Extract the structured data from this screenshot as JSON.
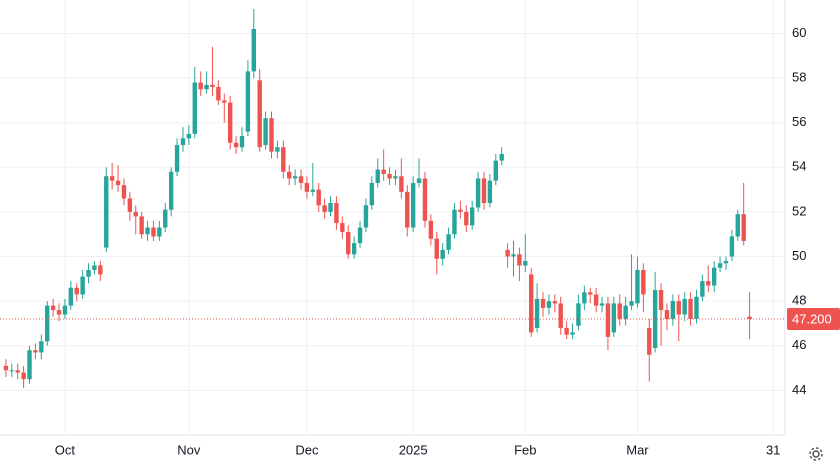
{
  "chart_data": {
    "type": "candlestick",
    "up_color": "#26a69a",
    "down_color": "#ef5350",
    "grid": true,
    "xlim": [
      -1,
      132
    ],
    "ylim": [
      42,
      61.5
    ],
    "xticks": [
      {
        "value": 10,
        "label": "Oct"
      },
      {
        "value": 31,
        "label": "Nov"
      },
      {
        "value": 51,
        "label": "Dec"
      },
      {
        "value": 69,
        "label": "2025"
      },
      {
        "value": 88,
        "label": "Feb"
      },
      {
        "value": 107,
        "label": "Mar"
      },
      {
        "value": 130,
        "label": "31"
      }
    ],
    "yticks": [
      44,
      46,
      48,
      50,
      52,
      54,
      56,
      58,
      60
    ],
    "last_price": {
      "value": 47.2,
      "label": "47.200"
    },
    "open": [
      45.1,
      44.9,
      44.9,
      44.8,
      44.5,
      45.8,
      45.7,
      46.2,
      47.8,
      47.6,
      47.4,
      47.8,
      48.6,
      48.3,
      49.1,
      49.4,
      49.6,
      50.4,
      53.6,
      53.4,
      53.2,
      52.6,
      52.0,
      51.8,
      51.0,
      51.3,
      50.9,
      51.3,
      52.1,
      53.8,
      55.0,
      55.3,
      55.5,
      57.8,
      57.5,
      57.7,
      57.6,
      57.0,
      56.9,
      55.1,
      54.9,
      55.6,
      58.3,
      57.9,
      55.0,
      56.2,
      54.7,
      54.9,
      53.8,
      53.5,
      53.6,
      53.3,
      52.9,
      53.0,
      52.3,
      52.0,
      52.4,
      51.5,
      51.1,
      50.1,
      50.6,
      51.3,
      52.3,
      53.3,
      53.9,
      53.7,
      53.5,
      53.6,
      52.9,
      51.3,
      53.3,
      53.5,
      51.6,
      50.8,
      49.9,
      50.3,
      51.0,
      52.1,
      52.0,
      51.4,
      52.2,
      53.5,
      52.4,
      53.4,
      54.3,
      50.3,
      50.0,
      50.1,
      49.6,
      49.2,
      46.8,
      48.1,
      47.7,
      48.0,
      47.9,
      46.8,
      46.5,
      46.9,
      47.9,
      48.4,
      48.3,
      47.8,
      47.9,
      46.6,
      47.9,
      47.2,
      47.8,
      47.9,
      49.4,
      46.8,
      45.9,
      48.5,
      47.6,
      47.2,
      48.0,
      47.4,
      48.1,
      47.2,
      48.2,
      48.9,
      48.7,
      49.5,
      49.7,
      50.0,
      50.9,
      51.9,
      47.3
    ],
    "high": [
      45.4,
      45.2,
      45.2,
      45.1,
      46.0,
      46.1,
      46.5,
      48.0,
      48.1,
      47.9,
      48.1,
      48.9,
      48.8,
      49.4,
      49.7,
      49.8,
      49.8,
      54.0,
      54.2,
      54.1,
      53.5,
      52.9,
      52.3,
      52.0,
      51.6,
      51.6,
      51.6,
      52.4,
      54.0,
      55.3,
      55.8,
      55.9,
      58.5,
      58.3,
      58.3,
      59.4,
      57.9,
      57.3,
      57.2,
      55.4,
      55.8,
      58.8,
      61.1,
      58.4,
      56.5,
      56.5,
      55.2,
      55.2,
      54.1,
      53.9,
      53.9,
      53.6,
      54.2,
      53.3,
      52.6,
      52.7,
      52.7,
      51.8,
      51.4,
      50.9,
      51.6,
      52.6,
      53.6,
      54.4,
      54.8,
      54.0,
      53.9,
      54.4,
      53.2,
      53.6,
      54.4,
      53.8,
      51.9,
      51.1,
      50.6,
      51.3,
      52.4,
      52.5,
      52.3,
      52.5,
      53.8,
      53.8,
      53.7,
      54.6,
      54.9,
      50.6,
      50.7,
      50.4,
      51.0,
      49.5,
      48.8,
      48.4,
      48.3,
      48.3,
      48.2,
      47.1,
      47.0,
      48.3,
      48.7,
      48.6,
      48.6,
      48.2,
      48.2,
      48.2,
      48.3,
      48.2,
      50.1,
      50.0,
      49.7,
      47.2,
      49.3,
      48.8,
      47.9,
      48.3,
      48.3,
      48.4,
      48.4,
      48.5,
      49.2,
      49.6,
      49.8,
      50.0,
      50.0,
      51.2,
      52.1,
      53.3,
      48.4
    ],
    "low": [
      44.6,
      44.6,
      44.5,
      44.1,
      44.3,
      45.4,
      45.4,
      46.0,
      47.3,
      47.1,
      47.2,
      47.6,
      48.0,
      48.1,
      48.8,
      49.2,
      48.9,
      50.2,
      53.0,
      52.9,
      52.3,
      51.6,
      51.0,
      50.8,
      50.7,
      50.7,
      50.7,
      51.1,
      51.8,
      53.6,
      54.7,
      55.0,
      55.3,
      57.2,
      57.3,
      57.2,
      56.8,
      56.0,
      54.8,
      54.6,
      54.7,
      55.4,
      58.0,
      54.7,
      54.8,
      54.4,
      54.4,
      53.5,
      53.2,
      53.2,
      53.0,
      52.6,
      52.7,
      52.0,
      51.7,
      51.8,
      51.2,
      50.8,
      49.9,
      49.9,
      50.4,
      51.1,
      52.1,
      53.1,
      53.4,
      53.2,
      53.2,
      52.6,
      50.9,
      51.1,
      53.1,
      51.3,
      50.5,
      49.2,
      49.6,
      50.1,
      50.8,
      51.7,
      51.1,
      51.2,
      52.0,
      52.1,
      52.2,
      53.2,
      54.1,
      49.5,
      49.1,
      48.9,
      49.3,
      46.4,
      46.6,
      47.3,
      47.4,
      47.5,
      46.5,
      46.3,
      46.3,
      46.7,
      47.6,
      47.9,
      47.5,
      47.5,
      45.8,
      46.4,
      46.9,
      46.9,
      47.6,
      47.7,
      47.5,
      44.4,
      45.7,
      46.0,
      46.7,
      46.9,
      46.2,
      47.1,
      46.9,
      47.0,
      48.0,
      48.4,
      48.4,
      49.3,
      49.4,
      49.8,
      50.7,
      50.5,
      46.3
    ],
    "close": [
      44.9,
      44.9,
      44.8,
      44.5,
      45.8,
      45.7,
      46.2,
      47.8,
      47.6,
      47.4,
      47.8,
      48.6,
      48.3,
      49.1,
      49.4,
      49.6,
      49.2,
      53.6,
      53.4,
      53.2,
      52.6,
      52.0,
      51.8,
      51.0,
      51.3,
      50.9,
      51.3,
      52.1,
      53.8,
      55.0,
      55.3,
      55.5,
      57.8,
      57.5,
      57.7,
      57.6,
      57.0,
      56.9,
      55.1,
      54.9,
      55.4,
      58.3,
      60.2,
      54.9,
      56.2,
      54.7,
      54.9,
      53.8,
      53.5,
      53.6,
      53.3,
      52.9,
      53.0,
      52.3,
      52.0,
      52.4,
      51.5,
      51.1,
      50.1,
      50.6,
      51.3,
      52.3,
      53.3,
      53.9,
      53.7,
      53.5,
      53.6,
      52.9,
      51.3,
      53.3,
      53.5,
      51.6,
      50.8,
      49.9,
      50.3,
      51.0,
      52.1,
      52.0,
      51.4,
      52.2,
      53.5,
      52.4,
      53.4,
      54.3,
      54.6,
      50.0,
      50.1,
      49.6,
      49.8,
      46.6,
      48.1,
      47.7,
      48.0,
      47.9,
      46.8,
      46.5,
      46.6,
      47.9,
      48.4,
      48.3,
      47.8,
      47.9,
      46.4,
      47.9,
      47.2,
      47.8,
      48.0,
      49.4,
      48.3,
      45.6,
      48.5,
      47.6,
      47.2,
      48.0,
      47.4,
      48.1,
      47.2,
      48.2,
      48.9,
      48.7,
      49.5,
      49.7,
      49.8,
      50.9,
      51.9,
      50.7,
      47.2
    ]
  }
}
